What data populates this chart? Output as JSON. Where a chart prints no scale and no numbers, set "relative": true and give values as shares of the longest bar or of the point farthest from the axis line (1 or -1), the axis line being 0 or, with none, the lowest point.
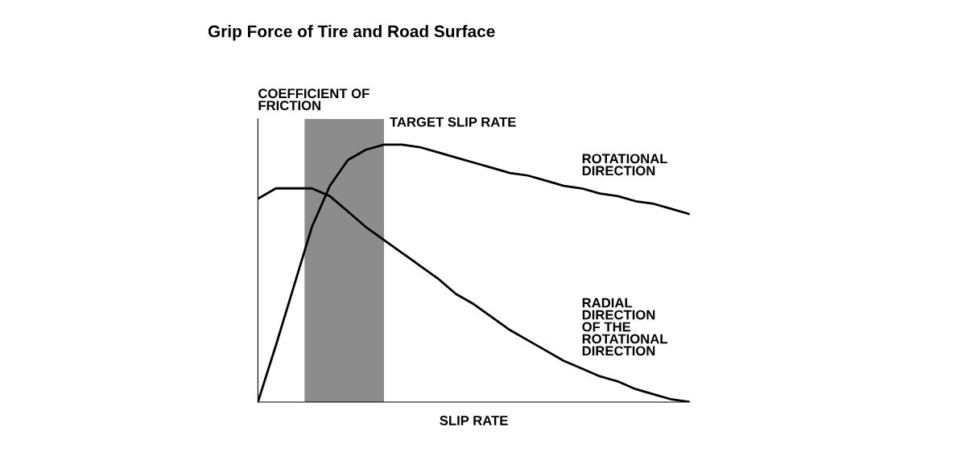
{
  "chart_data": {
    "type": "line",
    "title": "Grip Force of Tire and Road Surface",
    "xlabel": "SLIP RATE",
    "ylabel": "COEFFICIENT OF\nFRICTION",
    "relative": true,
    "categories": [
      null,
      null,
      null,
      null,
      null,
      null,
      null,
      null,
      null,
      null,
      null,
      null,
      null,
      null,
      null,
      null,
      null,
      null,
      null,
      null,
      null,
      null,
      null,
      null,
      null
    ],
    "series": [
      {
        "name": "ROTATIONAL\nDIRECTION",
        "color": "#000000",
        "values": [
          0,
          0.22,
          0.45,
          0.68,
          0.84,
          0.94,
          0.98,
          1.0,
          1.0,
          0.99,
          0.97,
          0.95,
          0.93,
          0.91,
          0.89,
          0.88,
          0.86,
          0.84,
          0.83,
          0.81,
          0.8,
          0.78,
          0.77,
          0.75,
          0.73
        ]
      },
      {
        "name": "RADIAL\nDIRECTION\nOF THE\nROTATIONAL\nDIRECTION",
        "color": "#000000",
        "values": [
          0.79,
          0.83,
          0.83,
          0.83,
          0.8,
          0.74,
          0.68,
          0.63,
          0.58,
          0.53,
          0.48,
          0.42,
          0.38,
          0.33,
          0.28,
          0.24,
          0.2,
          0.16,
          0.13,
          0.1,
          0.08,
          0.05,
          0.03,
          0.01,
          0
        ]
      }
    ],
    "annotations": [
      "TARGET SLIP RATE"
    ],
    "tick_labels": false,
    "grid": false,
    "legend": false,
    "marker": "none",
    "line_style": "solid"
  }
}
